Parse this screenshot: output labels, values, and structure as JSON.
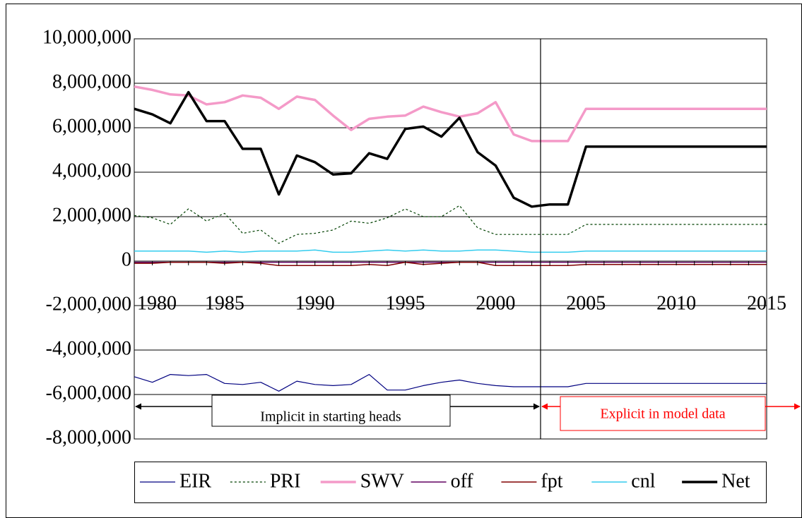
{
  "chart_data": {
    "type": "line",
    "categories": [
      "1980",
      null,
      null,
      null,
      null,
      "1985",
      null,
      null,
      null,
      null,
      "1990",
      null,
      null,
      null,
      null,
      "1995",
      null,
      null,
      null,
      null,
      "2000",
      null,
      null,
      null,
      null,
      "2005",
      null,
      null,
      null,
      null,
      "2010",
      null,
      null,
      null,
      null,
      "2015"
    ],
    "series": [
      {
        "name": "EIR",
        "color": "#000080",
        "width": 1.2,
        "dash": false,
        "values": [
          -5200000,
          -5450000,
          -5100000,
          -5150000,
          -5100000,
          -5500000,
          -5550000,
          -5450000,
          -5850000,
          -5400000,
          -5550000,
          -5600000,
          -5550000,
          -5100000,
          -5800000,
          -5800000,
          -5600000,
          -5450000,
          -5350000,
          -5500000,
          -5600000,
          -5650000,
          -5650000,
          -5650000,
          -5650000,
          -5500000,
          -5500000,
          -5500000,
          -5500000,
          -5500000,
          -5500000,
          -5500000,
          -5500000,
          -5500000,
          -5500000,
          -5500000
        ]
      },
      {
        "name": "PRI",
        "color": "#004000",
        "width": 1.2,
        "dash": true,
        "values": [
          2050000,
          1950000,
          1650000,
          2350000,
          1800000,
          2150000,
          1250000,
          1400000,
          800000,
          1200000,
          1250000,
          1400000,
          1800000,
          1700000,
          1950000,
          2350000,
          2000000,
          2000000,
          2500000,
          1500000,
          1200000,
          1200000,
          1200000,
          1200000,
          1200000,
          1650000,
          1650000,
          1650000,
          1650000,
          1650000,
          1650000,
          1650000,
          1650000,
          1650000,
          1650000,
          1650000
        ]
      },
      {
        "name": "SWV",
        "color": "#f49ac8",
        "width": 3.5,
        "dash": false,
        "values": [
          7850000,
          7700000,
          7500000,
          7450000,
          7050000,
          7150000,
          7450000,
          7350000,
          6850000,
          7400000,
          7250000,
          6550000,
          5900000,
          6400000,
          6500000,
          6550000,
          6950000,
          6700000,
          6500000,
          6650000,
          7150000,
          5700000,
          5400000,
          5400000,
          5400000,
          6850000,
          6850000,
          6850000,
          6850000,
          6850000,
          6850000,
          6850000,
          6850000,
          6850000,
          6850000,
          6850000
        ]
      },
      {
        "name": "off",
        "color": "#600060",
        "width": 1.5,
        "dash": false,
        "values": [
          -50000,
          -50000,
          -50000,
          -50000,
          -50000,
          -50000,
          -50000,
          -50000,
          -50000,
          -50000,
          -50000,
          -50000,
          -50000,
          -50000,
          -50000,
          -50000,
          -50000,
          -50000,
          -50000,
          -50000,
          -50000,
          -50000,
          -50000,
          -50000,
          -50000,
          -50000,
          -50000,
          -50000,
          -50000,
          -50000,
          -50000,
          -50000,
          -50000,
          -50000,
          -50000,
          -50000
        ]
      },
      {
        "name": "fpt",
        "color": "#800000",
        "width": 1.5,
        "dash": false,
        "values": [
          -100000,
          -100000,
          -50000,
          -50000,
          -50000,
          -100000,
          -50000,
          -100000,
          -200000,
          -200000,
          -200000,
          -200000,
          -200000,
          -150000,
          -200000,
          -50000,
          -150000,
          -100000,
          -50000,
          -50000,
          -200000,
          -200000,
          -200000,
          -200000,
          -200000,
          -150000,
          -150000,
          -150000,
          -150000,
          -150000,
          -150000,
          -150000,
          -150000,
          -150000,
          -150000,
          -150000
        ]
      },
      {
        "name": "cnl",
        "color": "#33ccee",
        "width": 1.5,
        "dash": false,
        "values": [
          450000,
          450000,
          450000,
          450000,
          400000,
          450000,
          400000,
          450000,
          450000,
          450000,
          500000,
          400000,
          400000,
          450000,
          500000,
          450000,
          500000,
          450000,
          450000,
          500000,
          500000,
          450000,
          400000,
          400000,
          400000,
          450000,
          450000,
          450000,
          450000,
          450000,
          450000,
          450000,
          450000,
          450000,
          450000,
          450000
        ]
      },
      {
        "name": "Net",
        "color": "#000000",
        "width": 3.5,
        "dash": false,
        "values": [
          6850000,
          6600000,
          6200000,
          7600000,
          6300000,
          6300000,
          5050000,
          5050000,
          3000000,
          4750000,
          4450000,
          3900000,
          3950000,
          4850000,
          4600000,
          5950000,
          6050000,
          5600000,
          6450000,
          4900000,
          4300000,
          2850000,
          2450000,
          2550000,
          2550000,
          5150000,
          5150000,
          5150000,
          5150000,
          5150000,
          5150000,
          5150000,
          5150000,
          5150000,
          5150000,
          5150000
        ]
      }
    ],
    "ylim": [
      -8000000,
      10000000
    ],
    "yticks": [
      {
        "value": -8000000,
        "label": "-8,000,000"
      },
      {
        "value": -6000000,
        "label": "-6,000,000"
      },
      {
        "value": -4000000,
        "label": "-4,000,000"
      },
      {
        "value": -2000000,
        "label": "-2,000,000"
      },
      0,
      {
        "value": 2000000,
        "label": "2,000,000"
      },
      {
        "value": 4000000,
        "label": "4,000,000"
      },
      {
        "value": 6000000,
        "label": "6,000,000"
      },
      {
        "value": 8000000,
        "label": "8,000,000"
      },
      {
        "value": 10000000,
        "label": "10,000,000"
      }
    ],
    "grid": true,
    "legend": "bottom",
    "annotations": [
      {
        "text": "Implicit in starting heads",
        "color": "#000000"
      },
      {
        "text": "Explicit in model data",
        "color": "#ff0000"
      }
    ]
  }
}
